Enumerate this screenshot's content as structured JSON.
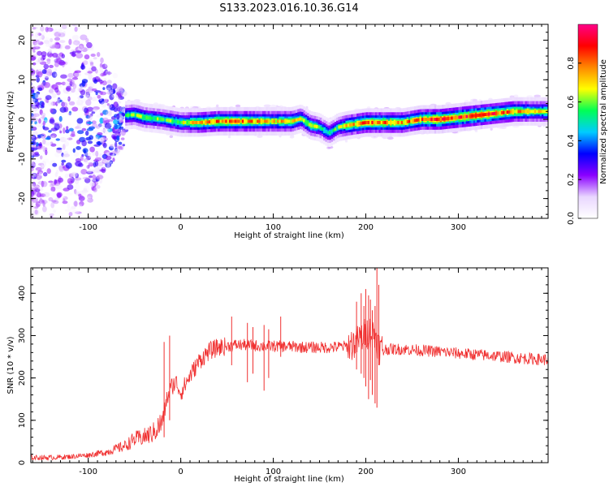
{
  "figure": {
    "title": "S133.2023.016.10.36.G14"
  },
  "chart_data": [
    {
      "type": "heatmap",
      "title": "S133.2023.016.10.36.G14",
      "xlabel": "Height of straight line (km)",
      "ylabel": "Frequency (Hz)",
      "xlim": [
        -162,
        397
      ],
      "ylim": [
        -25,
        24
      ],
      "xticks": [
        -100,
        0,
        100,
        200,
        300
      ],
      "yticks": [
        -20,
        -10,
        0,
        10,
        20
      ],
      "colorbar": {
        "label": "Normalized spectral amplitude",
        "range": [
          0,
          1
        ],
        "ticks": [
          "0.0",
          "0.2",
          "0.4",
          "0.6",
          "0.8"
        ],
        "tick_values": [
          0.0,
          0.2,
          0.4,
          0.6,
          0.8
        ],
        "colors": [
          "#ffffff",
          "#e9d6ff",
          "#8a00ff",
          "#0000ff",
          "#00ccff",
          "#00ff55",
          "#ffff00",
          "#ff8800",
          "#ff0000",
          "#ff0088"
        ]
      },
      "ridge": {
        "x": [
          -60,
          -50,
          -40,
          -20,
          0,
          20,
          40,
          60,
          80,
          100,
          120,
          130,
          140,
          150,
          160,
          170,
          180,
          200,
          220,
          240,
          260,
          280,
          300,
          320,
          340,
          360,
          380,
          397
        ],
        "freq_hz": [
          1.0,
          1.2,
          0.5,
          0.0,
          -0.8,
          -0.8,
          -0.5,
          -0.5,
          -0.5,
          -0.5,
          -0.5,
          0.2,
          -1.5,
          -2.0,
          -3.5,
          -2.0,
          -1.5,
          -0.8,
          -0.8,
          -0.8,
          0.0,
          0.0,
          0.5,
          1.0,
          1.5,
          2.0,
          2.0,
          2.0
        ],
        "amplitude": [
          0.55,
          0.6,
          0.6,
          0.55,
          0.6,
          0.75,
          0.8,
          0.8,
          0.75,
          0.7,
          0.7,
          0.6,
          0.65,
          0.55,
          0.5,
          0.55,
          0.7,
          0.8,
          0.8,
          0.75,
          0.8,
          0.9,
          0.85,
          0.9,
          0.85,
          0.75,
          0.7,
          0.65
        ]
      },
      "scatter_region": {
        "x_range": [
          -162,
          -60
        ],
        "freq_range": [
          -25,
          24
        ],
        "amplitude_range": [
          0.0,
          0.45
        ]
      }
    },
    {
      "type": "line",
      "xlabel": "Height of straight line (km)",
      "ylabel": "SNR (10 * v/v)",
      "xlim": [
        -162,
        397
      ],
      "ylim": [
        0,
        460
      ],
      "xticks": [
        -100,
        0,
        100,
        200,
        300
      ],
      "yticks": [
        0,
        100,
        200,
        300,
        400
      ],
      "line_color": "#f03030",
      "series": [
        {
          "x": [
            -162,
            -140,
            -120,
            -100,
            -80,
            -60,
            -50,
            -40,
            -30,
            -20,
            -15,
            -10,
            -5,
            0,
            10,
            20,
            30,
            40,
            50,
            60,
            70,
            80,
            90,
            100,
            120,
            140,
            160,
            180,
            190,
            200,
            205,
            210,
            215,
            220,
            240,
            260,
            280,
            300,
            320,
            340,
            360,
            380,
            397
          ],
          "y": [
            12,
            12,
            14,
            18,
            25,
            40,
            55,
            60,
            70,
            95,
            150,
            180,
            190,
            165,
            205,
            240,
            262,
            272,
            275,
            278,
            278,
            276,
            275,
            275,
            274,
            272,
            272,
            275,
            285,
            305,
            310,
            300,
            270,
            268,
            268,
            265,
            262,
            258,
            255,
            252,
            248,
            245,
            243
          ]
        }
      ],
      "spikes": {
        "x": [
          -18,
          -12,
          55,
          72,
          78,
          90,
          95,
          108,
          190,
          195,
          198,
          200,
          203,
          205,
          207,
          210,
          212,
          214
        ],
        "min": [
          60,
          100,
          230,
          190,
          210,
          170,
          200,
          250,
          220,
          210,
          200,
          180,
          150,
          195,
          160,
          140,
          130,
          230
        ],
        "max": [
          285,
          300,
          345,
          330,
          320,
          325,
          315,
          345,
          380,
          400,
          370,
          410,
          395,
          385,
          360,
          370,
          460,
          420
        ]
      }
    }
  ]
}
